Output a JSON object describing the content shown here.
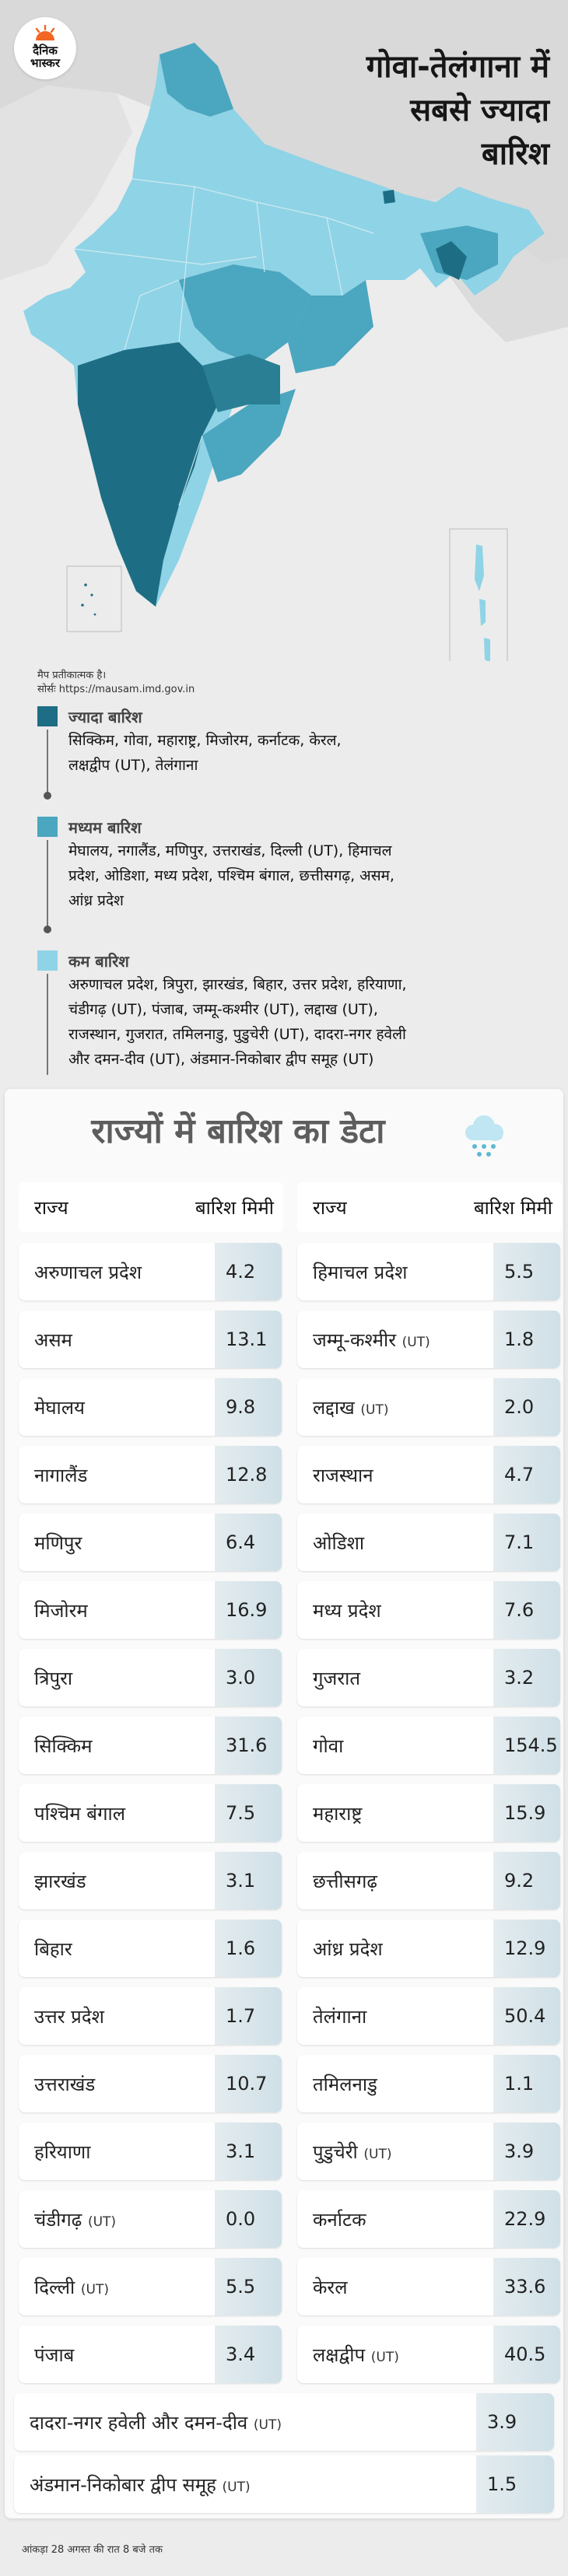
{
  "brand": {
    "line1": "दैनिक",
    "line2": "भास्कर",
    "color": "#f26522"
  },
  "headline": "गोवा-तेलंगाना में\nसबसे ज्यादा\nबारिश",
  "map_note": "मैप प्रतीकात्मक है।",
  "source": "सोर्सः https://mausam.imd.gov.in",
  "colors": {
    "high": "#1d6e84",
    "medium": "#4ba6bf",
    "low": "#8fd3e6"
  },
  "legend": [
    {
      "title": "ज्यादा बारिश",
      "color": "#1d6e84",
      "lines": [
        "सिक्किम, गोवा, महाराष्ट्र, मिजोरम, कर्नाटक, केरल,",
        "लक्षद्वीप (UT), तेलंगाना"
      ]
    },
    {
      "title": "मध्यम बारिश",
      "color": "#4ba6bf",
      "lines": [
        "मेघालय, नगालैंड, मणिपुर, उत्तराखंड, दिल्ली (UT), हिमाचल",
        "प्रदेश, ओडिशा, मध्य प्रदेश, पश्चिम बंगाल, छत्तीसगढ़, असम,",
        "आंध्र प्रदेश"
      ]
    },
    {
      "title": "कम बारिश",
      "color": "#8fd3e6",
      "lines": [
        "अरुणाचल प्रदेश, त्रिपुरा, झारखंड, बिहार, उत्तर प्रदेश, हरियाणा,",
        "चंडीगढ़ (UT), पंजाब, जम्मू-कश्मीर (UT), लद्दाख (UT),",
        "राजस्थान, गुजरात, तमिलनाडु, पुडुचेरी (UT), दादरा-नगर हवेली",
        "और दमन-दीव (UT), अंडमान-निकोबार द्वीप समूह (UT)"
      ]
    }
  ],
  "table": {
    "title": "राज्यों में बारिश का डेटा",
    "col_state": "राज्य",
    "col_value": "बारिश मिमी",
    "left": [
      {
        "state": "अरुणाचल प्रदेश",
        "ut": "",
        "value": "4.2"
      },
      {
        "state": "असम",
        "ut": "",
        "value": "13.1"
      },
      {
        "state": "मेघालय",
        "ut": "",
        "value": "9.8"
      },
      {
        "state": "नागालैंड",
        "ut": "",
        "value": "12.8"
      },
      {
        "state": "मणिपुर",
        "ut": "",
        "value": "6.4"
      },
      {
        "state": "मिजोरम",
        "ut": "",
        "value": "16.9"
      },
      {
        "state": "त्रिपुरा",
        "ut": "",
        "value": "3.0"
      },
      {
        "state": "सिक्किम",
        "ut": "",
        "value": "31.6"
      },
      {
        "state": "पश्चिम बंगाल",
        "ut": "",
        "value": "7.5"
      },
      {
        "state": "झारखंड",
        "ut": "",
        "value": "3.1"
      },
      {
        "state": "बिहार",
        "ut": "",
        "value": "1.6"
      },
      {
        "state": "उत्तर प्रदेश",
        "ut": "",
        "value": "1.7"
      },
      {
        "state": "उत्तराखंड",
        "ut": "",
        "value": "10.7"
      },
      {
        "state": "हरियाणा",
        "ut": "",
        "value": "3.1"
      },
      {
        "state": "चंडीगढ़",
        "ut": "(UT)",
        "value": "0.0"
      },
      {
        "state": "दिल्ली",
        "ut": "(UT)",
        "value": "5.5"
      },
      {
        "state": "पंजाब",
        "ut": "",
        "value": "3.4"
      }
    ],
    "right": [
      {
        "state": "हिमाचल प्रदेश",
        "ut": "",
        "value": "5.5"
      },
      {
        "state": "जम्मू-कश्मीर",
        "ut": "(UT)",
        "value": "1.8"
      },
      {
        "state": "लद्दाख",
        "ut": "(UT)",
        "value": "2.0"
      },
      {
        "state": "राजस्थान",
        "ut": "",
        "value": "4.7"
      },
      {
        "state": "ओडिशा",
        "ut": "",
        "value": "7.1"
      },
      {
        "state": "मध्य प्रदेश",
        "ut": "",
        "value": "7.6"
      },
      {
        "state": "गुजरात",
        "ut": "",
        "value": "3.2"
      },
      {
        "state": "गोवा",
        "ut": "",
        "value": "154.5"
      },
      {
        "state": "महाराष्ट्र",
        "ut": "",
        "value": "15.9"
      },
      {
        "state": "छत्तीसगढ़",
        "ut": "",
        "value": "9.2"
      },
      {
        "state": "आंध्र प्रदेश",
        "ut": "",
        "value": "12.9"
      },
      {
        "state": "तेलंगाना",
        "ut": "",
        "value": "50.4"
      },
      {
        "state": "तमिलनाडु",
        "ut": "",
        "value": "1.1"
      },
      {
        "state": "पुडुचेरी",
        "ut": "(UT)",
        "value": "3.9"
      },
      {
        "state": "कर्नाटक",
        "ut": "",
        "value": "22.9"
      },
      {
        "state": "केरल",
        "ut": "",
        "value": "33.6"
      },
      {
        "state": "लक्षद्वीप",
        "ut": "(UT)",
        "value": "40.5"
      }
    ],
    "wide": [
      {
        "state": "दादरा-नगर हवेली और दमन-दीव",
        "ut": "(UT)",
        "value": "3.9"
      },
      {
        "state": "अंडमान-निकोबार द्वीप समूह",
        "ut": "(UT)",
        "value": "1.5"
      }
    ]
  },
  "footnote": "आंकड़ा 28 अगस्त की रात 8 बजे तक"
}
